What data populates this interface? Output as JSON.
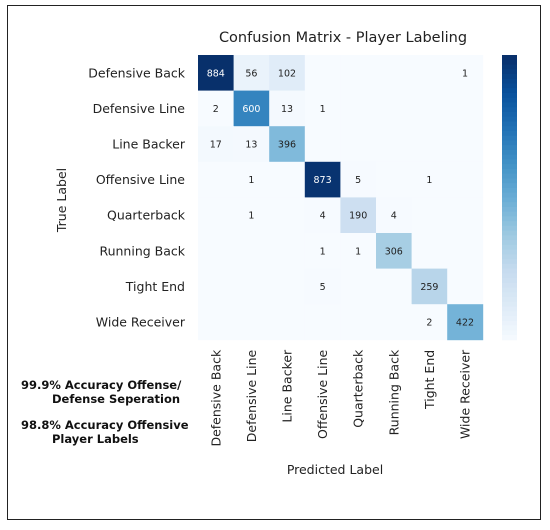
{
  "chart_data": {
    "type": "heatmap",
    "title": "Confusion Matrix - Player Labeling",
    "xlabel": "Predicted Label",
    "ylabel": "True Label",
    "rows": [
      "Defensive Back",
      "Defensive Line",
      "Line Backer",
      "Offensive Line",
      "Quarterback",
      "Running Back",
      "Tight End",
      "Wide Receiver"
    ],
    "columns": [
      "Defensive Back",
      "Defensive Line",
      "Line Backer",
      "Offensive Line",
      "Quarterback",
      "Running Back",
      "Tight End",
      "Wide Receiver"
    ],
    "values": [
      [
        884,
        56,
        102,
        null,
        null,
        null,
        null,
        1
      ],
      [
        2,
        600,
        13,
        1,
        null,
        null,
        null,
        null
      ],
      [
        17,
        13,
        396,
        null,
        null,
        null,
        null,
        null
      ],
      [
        null,
        1,
        null,
        873,
        5,
        null,
        1,
        null
      ],
      [
        null,
        1,
        null,
        4,
        190,
        4,
        null,
        null
      ],
      [
        null,
        null,
        null,
        1,
        1,
        306,
        null,
        null
      ],
      [
        null,
        null,
        null,
        5,
        null,
        null,
        259,
        null
      ],
      [
        null,
        null,
        null,
        null,
        null,
        null,
        2,
        422
      ]
    ],
    "colormap": "Blues",
    "vmin": 0,
    "vmax": 884,
    "colorbar": true,
    "grid": false
  },
  "notes": {
    "accuracy_offense_defense": [
      "99.9% Accuracy Offense/",
      "Defense Seperation"
    ],
    "accuracy_offensive_labels": [
      "98.8% Accuracy Offensive",
      "Player Labels"
    ]
  }
}
